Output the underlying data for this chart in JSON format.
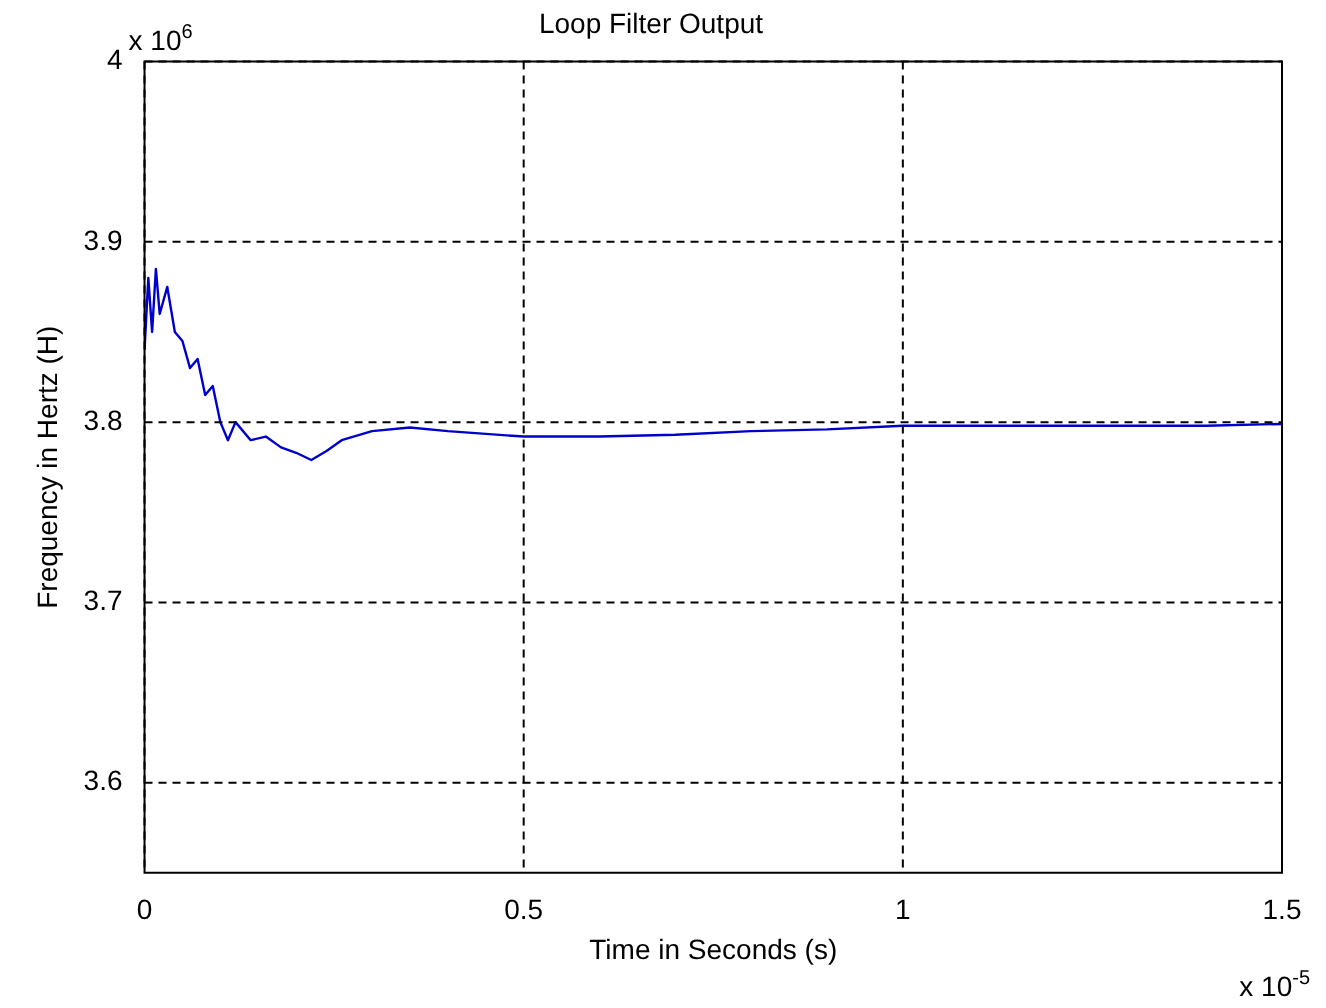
{
  "chart_data": {
    "type": "line",
    "title": "Loop Filter Output",
    "xlabel": "Time in Seconds (s)",
    "ylabel": "Frequency in Hertz (H)",
    "annotations": [
      "x 10$^{6}$",
      "x 10$^{-5}$"
    ],
    "x": [
      0,
      0.005,
      0.01,
      0.015,
      0.02,
      0.03,
      0.04,
      0.05,
      0.06,
      0.07,
      0.08,
      0.09,
      0.1,
      0.11,
      0.12,
      0.14,
      0.16,
      0.18,
      0.2,
      0.22,
      0.24,
      0.26,
      0.3,
      0.35,
      0.4,
      0.5,
      0.6,
      0.7,
      0.8,
      0.9,
      1.0,
      1.1,
      1.2,
      1.3,
      1.4,
      1.5
    ],
    "series": [
      {
        "color": "#0000cc",
        "values": [
          3.84,
          3.88,
          3.85,
          3.885,
          3.86,
          3.875,
          3.85,
          3.845,
          3.83,
          3.835,
          3.815,
          3.82,
          3.8,
          3.79,
          3.8,
          3.79,
          3.792,
          3.786,
          3.783,
          3.779,
          3.784,
          3.79,
          3.795,
          3.797,
          3.795,
          3.792,
          3.792,
          3.793,
          3.795,
          3.796,
          3.798,
          3.798,
          3.798,
          3.798,
          3.798,
          3.799
        ]
      }
    ],
    "xlim": [
      0,
      1.5
    ],
    "xticks": [
      0,
      0.5,
      1,
      1.5
    ],
    "ylim": [
      3.55,
      4.0
    ],
    "yticks": [
      3.6,
      3.7,
      3.8,
      3.9,
      4
    ],
    "grid": true,
    "legend": false,
    "marker": "none",
    "line_style": "solid"
  }
}
